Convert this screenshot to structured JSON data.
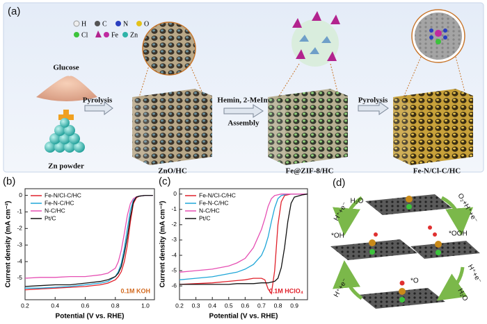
{
  "panel_a": {
    "label": "(a)",
    "legend": [
      "H",
      "C",
      "N",
      "O",
      "Cl",
      "Fe",
      "Zn"
    ],
    "glucose": "Glucose",
    "zn_powder": "Zn powder",
    "step1": "Pyrolysis",
    "znohc": "ZnO/HC",
    "step2": [
      "Hemin, 2-MeIm",
      "Assembly"
    ],
    "fezif": "Fe@ZIF-8/HC",
    "step3": "Pyrolysis",
    "product": "Fe-N/Cl-C/HC"
  },
  "chart_data": [
    {
      "type": "line",
      "label": "(b)",
      "xlabel": "Potential (V vs. RHE)",
      "ylabel": "Current density (mA cm⁻²)",
      "annotation": "0.1M KOH",
      "annotation_color": "#d2691e",
      "legend": "upper left",
      "x": [
        0.2,
        0.3,
        0.4,
        0.5,
        0.6,
        0.7,
        0.75,
        0.8,
        0.82,
        0.84,
        0.86,
        0.88,
        0.9,
        0.92,
        0.94,
        0.96,
        1.0,
        1.05
      ],
      "xlim": [
        0.2,
        1.06
      ],
      "ylim": [
        -6.3,
        0.4
      ],
      "xticks": [
        0.2,
        0.4,
        0.6,
        0.8,
        {
          "value": 1,
          "label": "1.0"
        }
      ],
      "yticks": [
        0,
        -1,
        -2,
        -3,
        -4,
        -5
      ],
      "series": [
        {
          "name": "Fe-N/Cl-C/HC",
          "color": "#e0202a",
          "values": [
            -5.7,
            -5.65,
            -5.6,
            -5.55,
            -5.5,
            -5.4,
            -5.3,
            -5.1,
            -4.9,
            -4.6,
            -4.0,
            -3.0,
            -1.6,
            -0.5,
            -0.15,
            -0.05,
            0,
            0
          ]
        },
        {
          "name": "Fe-N-C/HC",
          "color": "#1fa6d8",
          "values": [
            -5.6,
            -5.6,
            -5.55,
            -5.5,
            -5.4,
            -5.3,
            -5.2,
            -4.9,
            -4.6,
            -4.1,
            -3.2,
            -2.0,
            -0.9,
            -0.3,
            -0.1,
            -0.05,
            0,
            0
          ]
        },
        {
          "name": "N-C/HC",
          "color": "#e64fb3",
          "values": [
            -5.0,
            -4.95,
            -4.95,
            -4.9,
            -4.9,
            -4.8,
            -4.7,
            -4.4,
            -4.0,
            -3.3,
            -2.3,
            -1.2,
            -0.5,
            -0.2,
            -0.1,
            -0.05,
            0,
            0
          ]
        },
        {
          "name": "Pt/C",
          "color": "#111111",
          "values": [
            -5.5,
            -5.45,
            -5.4,
            -5.4,
            -5.3,
            -5.2,
            -5.1,
            -4.9,
            -4.7,
            -4.3,
            -3.5,
            -2.5,
            -1.3,
            -0.4,
            -0.1,
            -0.05,
            0,
            0
          ]
        }
      ]
    },
    {
      "type": "line",
      "label": "(c)",
      "xlabel": "Potential (V vs. RHE)",
      "ylabel": "Current density (mA cm⁻²)",
      "annotation": "0.1M HClO₄",
      "annotation_color": "#e0202a",
      "legend": "upper left",
      "x": [
        0.2,
        0.3,
        0.4,
        0.5,
        0.55,
        0.6,
        0.65,
        0.7,
        0.72,
        0.74,
        0.76,
        0.78,
        0.8,
        0.82,
        0.84,
        0.86,
        0.88,
        0.9,
        0.95,
        0.98
      ],
      "xlim": [
        0.2,
        0.98
      ],
      "ylim": [
        -6.9,
        0.35
      ],
      "xticks": [
        0.2,
        0.3,
        0.4,
        0.5,
        0.6,
        0.7,
        0.8,
        0.9
      ],
      "yticks": [
        0,
        -1,
        -2,
        -3,
        -4,
        -5,
        -6
      ],
      "series": [
        {
          "name": "Fe-N/Cl-C/HC",
          "color": "#e0202a",
          "values": [
            -5.9,
            -5.85,
            -5.8,
            -5.7,
            -5.65,
            -5.6,
            -5.5,
            -5.5,
            -5.6,
            -6.2,
            -6.5,
            -5.0,
            -2.0,
            -0.5,
            -0.1,
            -0.05,
            0,
            0,
            0,
            0
          ]
        },
        {
          "name": "Fe-N-C/HC",
          "color": "#1fa6d8",
          "values": [
            -5.6,
            -5.5,
            -5.4,
            -5.2,
            -5.1,
            -4.9,
            -4.6,
            -4.0,
            -3.5,
            -2.8,
            -1.8,
            -0.9,
            -0.3,
            -0.1,
            -0.05,
            0,
            0,
            0,
            0,
            0
          ]
        },
        {
          "name": "N-C/HC",
          "color": "#e64fb3",
          "values": [
            -5.1,
            -5.0,
            -4.9,
            -4.7,
            -4.5,
            -4.2,
            -3.5,
            -2.3,
            -1.6,
            -0.8,
            -0.3,
            -0.1,
            -0.05,
            0,
            0,
            0,
            0,
            0,
            0,
            0
          ]
        },
        {
          "name": "Pt/C",
          "color": "#111111",
          "values": [
            -5.9,
            -5.9,
            -5.9,
            -5.9,
            -5.85,
            -5.85,
            -5.85,
            -5.8,
            -5.8,
            -5.8,
            -5.75,
            -5.7,
            -5.5,
            -4.8,
            -3.5,
            -1.8,
            -0.6,
            -0.2,
            -0.05,
            0
          ]
        }
      ]
    }
  ],
  "panel_d": {
    "label": "(d)",
    "h2o_top": "H₂O",
    "step_top_left": "H⁺+e⁻",
    "step_top_right": "O₂+H⁺+e⁻",
    "ooh": "*OOH",
    "oh": "*OH",
    "o": "*O",
    "step_bottom_left": "H⁺+e⁻",
    "step_bottom_right": "H⁺+e⁻",
    "h2o_bottom": "H₂O"
  }
}
